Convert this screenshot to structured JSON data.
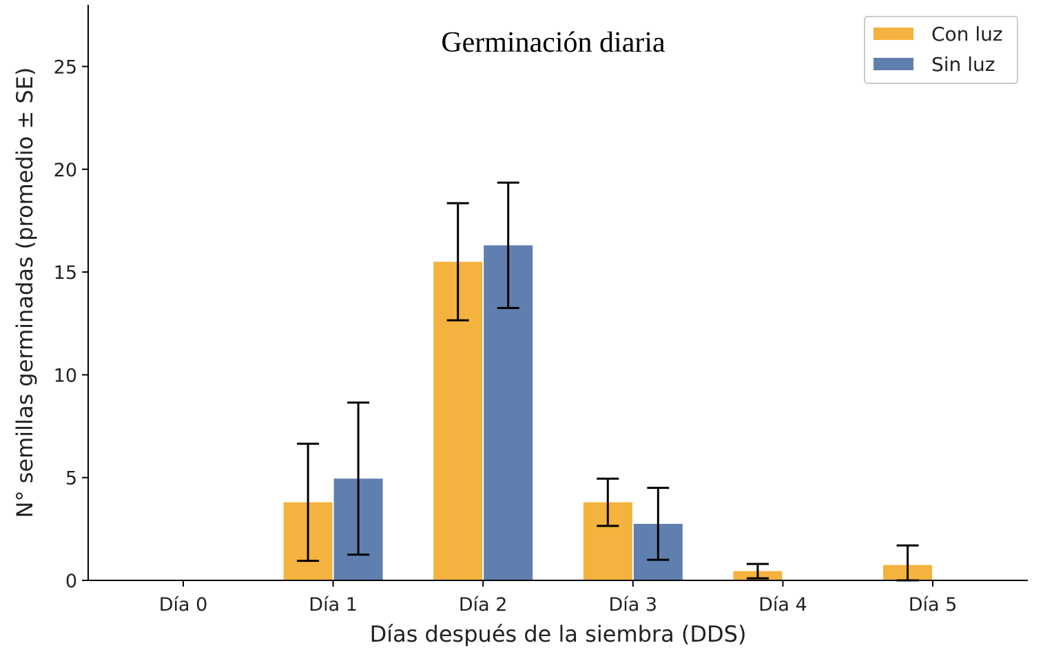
{
  "chart_data": {
    "type": "bar",
    "title": "Germinación diaria",
    "xlabel": "Días después de la siembra (DDS)",
    "ylabel": "N° semillas germinadas (promedio ± SE)",
    "categories": [
      "Día 0",
      "Día 1",
      "Día 2",
      "Día 3",
      "Día 4",
      "Día 5"
    ],
    "ylim": [
      0,
      28
    ],
    "yticks": [
      0,
      5,
      10,
      15,
      20,
      25
    ],
    "legend_position": "top-right",
    "series": [
      {
        "name": "Con luz",
        "color": "#F4B23E",
        "values": [
          0,
          3.8,
          15.5,
          3.8,
          0.45,
          0.75
        ],
        "errors": [
          0,
          2.85,
          2.85,
          1.15,
          0.35,
          0.95
        ]
      },
      {
        "name": "Sin luz",
        "color": "#5F7FAF",
        "values": [
          0,
          4.95,
          16.3,
          2.75,
          0,
          0
        ],
        "errors": [
          0,
          3.7,
          3.05,
          1.75,
          0,
          0
        ]
      }
    ]
  }
}
